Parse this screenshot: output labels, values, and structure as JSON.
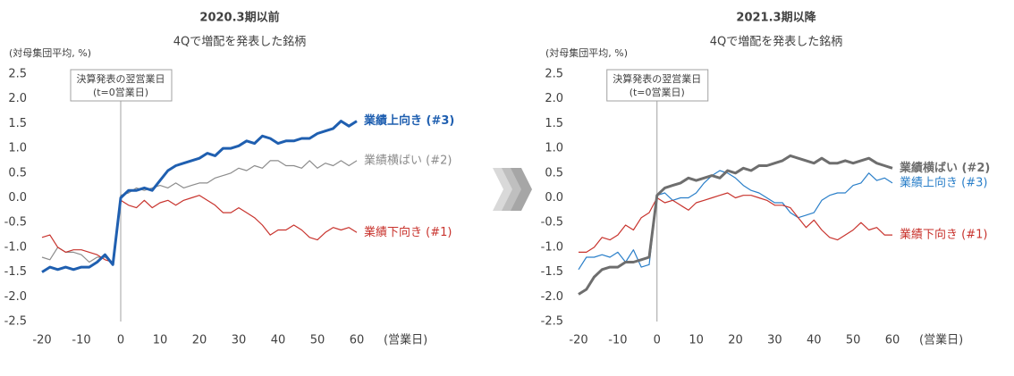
{
  "chart_data": [
    {
      "type": "line",
      "title": "2020.3期以前",
      "subtitle": "4Qで増配を発表した銘柄",
      "y_label": "(対母集団平均, %)",
      "x_label": "(営業日)",
      "annotation": [
        "決算発表の翌営業日",
        "(t=0営業日)"
      ],
      "vline": 0,
      "x": [
        -20,
        -18,
        -16,
        -14,
        -12,
        -10,
        -8,
        -6,
        -4,
        -2,
        0,
        2,
        4,
        6,
        8,
        10,
        12,
        14,
        16,
        18,
        20,
        22,
        24,
        26,
        28,
        30,
        32,
        34,
        36,
        38,
        40,
        42,
        44,
        46,
        48,
        50,
        52,
        54,
        56,
        58,
        60
      ],
      "xlim": [
        -20,
        60
      ],
      "xticks": [
        -20,
        -10,
        0,
        10,
        20,
        30,
        40,
        50,
        60
      ],
      "ylim": [
        -2.5,
        2.5
      ],
      "yticks": [
        {
          "value": 2.5,
          "label": "2.5"
        },
        {
          "value": 2,
          "label": "2.0"
        },
        {
          "value": 1.5,
          "label": "1.5"
        },
        {
          "value": 1,
          "label": "1.0"
        },
        {
          "value": 0.5,
          "label": "0.5"
        },
        {
          "value": 0,
          "label": "0.0"
        },
        {
          "value": -0.5,
          "label": "-0.5"
        },
        {
          "value": -1,
          "label": "-1.0"
        },
        {
          "value": -1.5,
          "label": "-1.5"
        },
        {
          "value": -2,
          "label": "-2.0"
        },
        {
          "value": -2.5,
          "label": "-2.5"
        }
      ],
      "series": [
        {
          "name": "業績上向き (#3)",
          "color": "#1f5fb0",
          "line_width": 3,
          "values": [
            -1.5,
            -1.4,
            -1.45,
            -1.4,
            -1.45,
            -1.4,
            -1.4,
            -1.3,
            -1.15,
            -1.35,
            0.0,
            0.15,
            0.15,
            0.2,
            0.15,
            0.35,
            0.55,
            0.65,
            0.7,
            0.75,
            0.8,
            0.9,
            0.85,
            1.0,
            1.0,
            1.05,
            1.15,
            1.1,
            1.25,
            1.2,
            1.1,
            1.15,
            1.15,
            1.2,
            1.2,
            1.3,
            1.35,
            1.4,
            1.55,
            1.45,
            1.55
          ]
        },
        {
          "name": "業績横ばい (#2)",
          "color": "#8c8c8c",
          "line_width": 1.2,
          "values": [
            -1.2,
            -1.25,
            -1.0,
            -1.1,
            -1.1,
            -1.15,
            -1.3,
            -1.2,
            -1.2,
            -1.3,
            0.05,
            0.1,
            0.2,
            0.15,
            0.2,
            0.25,
            0.2,
            0.3,
            0.2,
            0.25,
            0.3,
            0.3,
            0.4,
            0.45,
            0.5,
            0.6,
            0.55,
            0.65,
            0.6,
            0.75,
            0.75,
            0.65,
            0.65,
            0.6,
            0.75,
            0.6,
            0.7,
            0.65,
            0.75,
            0.65,
            0.75
          ]
        },
        {
          "name": "業績下向き (#1)",
          "color": "#c8332d",
          "line_width": 1.2,
          "values": [
            -0.8,
            -0.75,
            -1.0,
            -1.1,
            -1.05,
            -1.05,
            -1.1,
            -1.15,
            -1.25,
            -1.3,
            -0.05,
            -0.15,
            -0.2,
            -0.05,
            -0.2,
            -0.1,
            -0.05,
            -0.15,
            -0.05,
            0.0,
            0.05,
            -0.05,
            -0.15,
            -0.3,
            -0.3,
            -0.2,
            -0.3,
            -0.4,
            -0.55,
            -0.75,
            -0.65,
            -0.65,
            -0.55,
            -0.65,
            -0.8,
            -0.85,
            -0.7,
            -0.6,
            -0.65,
            -0.6,
            -0.7
          ]
        }
      ]
    },
    {
      "type": "line",
      "title": "2021.3期以降",
      "subtitle": "4Qで増配を発表した銘柄",
      "y_label": "(対母集団平均, %)",
      "x_label": "(営業日)",
      "annotation": [
        "決算発表の翌営業日",
        "(t=0営業日)"
      ],
      "vline": 0,
      "x": [
        -20,
        -18,
        -16,
        -14,
        -12,
        -10,
        -8,
        -6,
        -4,
        -2,
        0,
        2,
        4,
        6,
        8,
        10,
        12,
        14,
        16,
        18,
        20,
        22,
        24,
        26,
        28,
        30,
        32,
        34,
        36,
        38,
        40,
        42,
        44,
        46,
        48,
        50,
        52,
        54,
        56,
        58,
        60
      ],
      "xlim": [
        -20,
        60
      ],
      "xticks": [
        -20,
        -10,
        0,
        10,
        20,
        30,
        40,
        50,
        60
      ],
      "ylim": [
        -2.5,
        2.5
      ],
      "yticks": [
        {
          "value": 2.5,
          "label": "2.5"
        },
        {
          "value": 2,
          "label": "2.0"
        },
        {
          "value": 1.5,
          "label": "1.5"
        },
        {
          "value": 1,
          "label": "1.0"
        },
        {
          "value": 0.5,
          "label": "0.5"
        },
        {
          "value": 0,
          "label": "0.0"
        },
        {
          "value": -0.5,
          "label": "-0.5"
        },
        {
          "value": -1,
          "label": "-1.0"
        },
        {
          "value": -1.5,
          "label": "-1.5"
        },
        {
          "value": -2,
          "label": "-2.0"
        },
        {
          "value": -2.5,
          "label": "-2.5"
        }
      ],
      "series": [
        {
          "name": "業績横ばい (#2)",
          "color": "#6e6e6e",
          "line_width": 3,
          "values": [
            -1.95,
            -1.85,
            -1.6,
            -1.45,
            -1.4,
            -1.4,
            -1.3,
            -1.3,
            -1.25,
            -1.2,
            0.05,
            0.2,
            0.25,
            0.3,
            0.4,
            0.35,
            0.4,
            0.45,
            0.4,
            0.55,
            0.5,
            0.6,
            0.55,
            0.65,
            0.65,
            0.7,
            0.75,
            0.85,
            0.8,
            0.75,
            0.7,
            0.8,
            0.7,
            0.7,
            0.75,
            0.7,
            0.75,
            0.8,
            0.7,
            0.65,
            0.6
          ]
        },
        {
          "name": "業績上向き (#3)",
          "color": "#2a7fc9",
          "line_width": 1.2,
          "values": [
            -1.45,
            -1.2,
            -1.2,
            -1.15,
            -1.2,
            -1.1,
            -1.3,
            -1.05,
            -1.4,
            -1.35,
            0.05,
            0.1,
            -0.05,
            0.0,
            0.0,
            0.1,
            0.3,
            0.45,
            0.55,
            0.5,
            0.4,
            0.25,
            0.15,
            0.1,
            0.0,
            -0.1,
            -0.1,
            -0.3,
            -0.4,
            -0.35,
            -0.3,
            -0.05,
            0.05,
            0.1,
            0.1,
            0.25,
            0.3,
            0.5,
            0.35,
            0.4,
            0.3
          ]
        },
        {
          "name": "業績下向き (#1)",
          "color": "#c8332d",
          "line_width": 1.2,
          "values": [
            -1.1,
            -1.1,
            -1.0,
            -0.8,
            -0.85,
            -0.75,
            -0.55,
            -0.65,
            -0.4,
            -0.3,
            0.0,
            -0.1,
            -0.05,
            -0.15,
            -0.25,
            -0.1,
            -0.05,
            0.0,
            0.05,
            0.1,
            0.0,
            0.05,
            0.05,
            0.0,
            -0.05,
            -0.15,
            -0.15,
            -0.2,
            -0.4,
            -0.6,
            -0.45,
            -0.65,
            -0.8,
            -0.85,
            -0.75,
            -0.65,
            -0.5,
            -0.65,
            -0.6,
            -0.75,
            -0.75
          ]
        }
      ]
    }
  ]
}
